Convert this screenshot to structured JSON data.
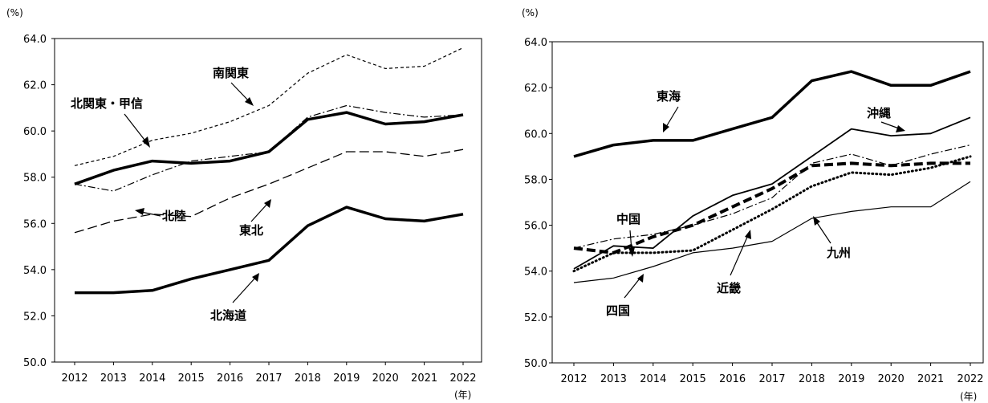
{
  "chart_data": [
    {
      "type": "line",
      "y_unit": "(%)",
      "x_unit": "(年)",
      "ylim": [
        50.0,
        64.0
      ],
      "yticks": [
        "50.0",
        "52.0",
        "54.0",
        "56.0",
        "58.0",
        "60.0",
        "62.0",
        "64.0"
      ],
      "categories": [
        "2012",
        "2013",
        "2014",
        "2015",
        "2016",
        "2017",
        "2018",
        "2019",
        "2020",
        "2021",
        "2022"
      ],
      "grid": false,
      "series": [
        {
          "name": "南関東",
          "style": "short-dash-thin",
          "values": [
            58.5,
            58.9,
            59.6,
            59.9,
            60.4,
            61.1,
            62.5,
            63.3,
            62.7,
            62.8,
            63.6
          ]
        },
        {
          "name": "北関東・甲信",
          "style": "solid-thick",
          "values": [
            57.7,
            58.3,
            58.7,
            58.6,
            58.7,
            59.1,
            60.5,
            60.8,
            60.3,
            60.4,
            60.7
          ]
        },
        {
          "name": "北陸",
          "style": "dash-dot-thin",
          "values": [
            57.7,
            57.4,
            58.1,
            58.7,
            58.9,
            59.1,
            60.6,
            61.1,
            60.8,
            60.6,
            60.7
          ]
        },
        {
          "name": "東北",
          "style": "long-dash",
          "values": [
            55.6,
            56.1,
            56.4,
            56.3,
            57.1,
            57.7,
            58.4,
            59.1,
            59.1,
            58.9,
            59.2
          ]
        },
        {
          "name": "北海道",
          "style": "solid-thick",
          "values": [
            53.0,
            53.0,
            53.1,
            53.6,
            54.0,
            54.4,
            55.9,
            56.7,
            56.2,
            56.1,
            56.4
          ]
        }
      ]
    },
    {
      "type": "line",
      "y_unit": "(%)",
      "x_unit": "(年)",
      "ylim": [
        50.0,
        64.0
      ],
      "yticks": [
        "50.0",
        "52.0",
        "54.0",
        "56.0",
        "58.0",
        "60.0",
        "62.0",
        "64.0"
      ],
      "categories": [
        "2012",
        "2013",
        "2014",
        "2015",
        "2016",
        "2017",
        "2018",
        "2019",
        "2020",
        "2021",
        "2022"
      ],
      "grid": false,
      "series": [
        {
          "name": "東海",
          "style": "solid-thick",
          "values": [
            59.0,
            59.5,
            59.7,
            59.7,
            60.2,
            60.7,
            62.3,
            62.7,
            62.1,
            62.1,
            62.7
          ]
        },
        {
          "name": "沖縄",
          "style": "solid-medium",
          "values": [
            54.1,
            55.1,
            55.0,
            56.4,
            57.3,
            57.8,
            59.0,
            60.2,
            59.9,
            60.0,
            60.7
          ]
        },
        {
          "name": "中国",
          "style": "dash-dot-thin",
          "values": [
            55.0,
            55.4,
            55.6,
            56.0,
            56.5,
            57.2,
            58.7,
            59.1,
            58.6,
            59.1,
            59.5
          ]
        },
        {
          "name": "九州",
          "style": "dash-thick",
          "values": [
            55.0,
            54.8,
            55.5,
            56.0,
            56.8,
            57.6,
            58.6,
            58.7,
            58.6,
            58.7,
            58.7
          ]
        },
        {
          "name": "近畿",
          "style": "dotted-thick",
          "values": [
            54.0,
            54.8,
            54.8,
            54.9,
            55.8,
            56.7,
            57.7,
            58.3,
            58.2,
            58.5,
            59.0
          ]
        },
        {
          "name": "四国",
          "style": "solid-thin",
          "values": [
            53.5,
            53.7,
            54.2,
            54.8,
            55.0,
            55.3,
            56.3,
            56.6,
            56.8,
            56.8,
            57.9
          ]
        }
      ]
    }
  ]
}
